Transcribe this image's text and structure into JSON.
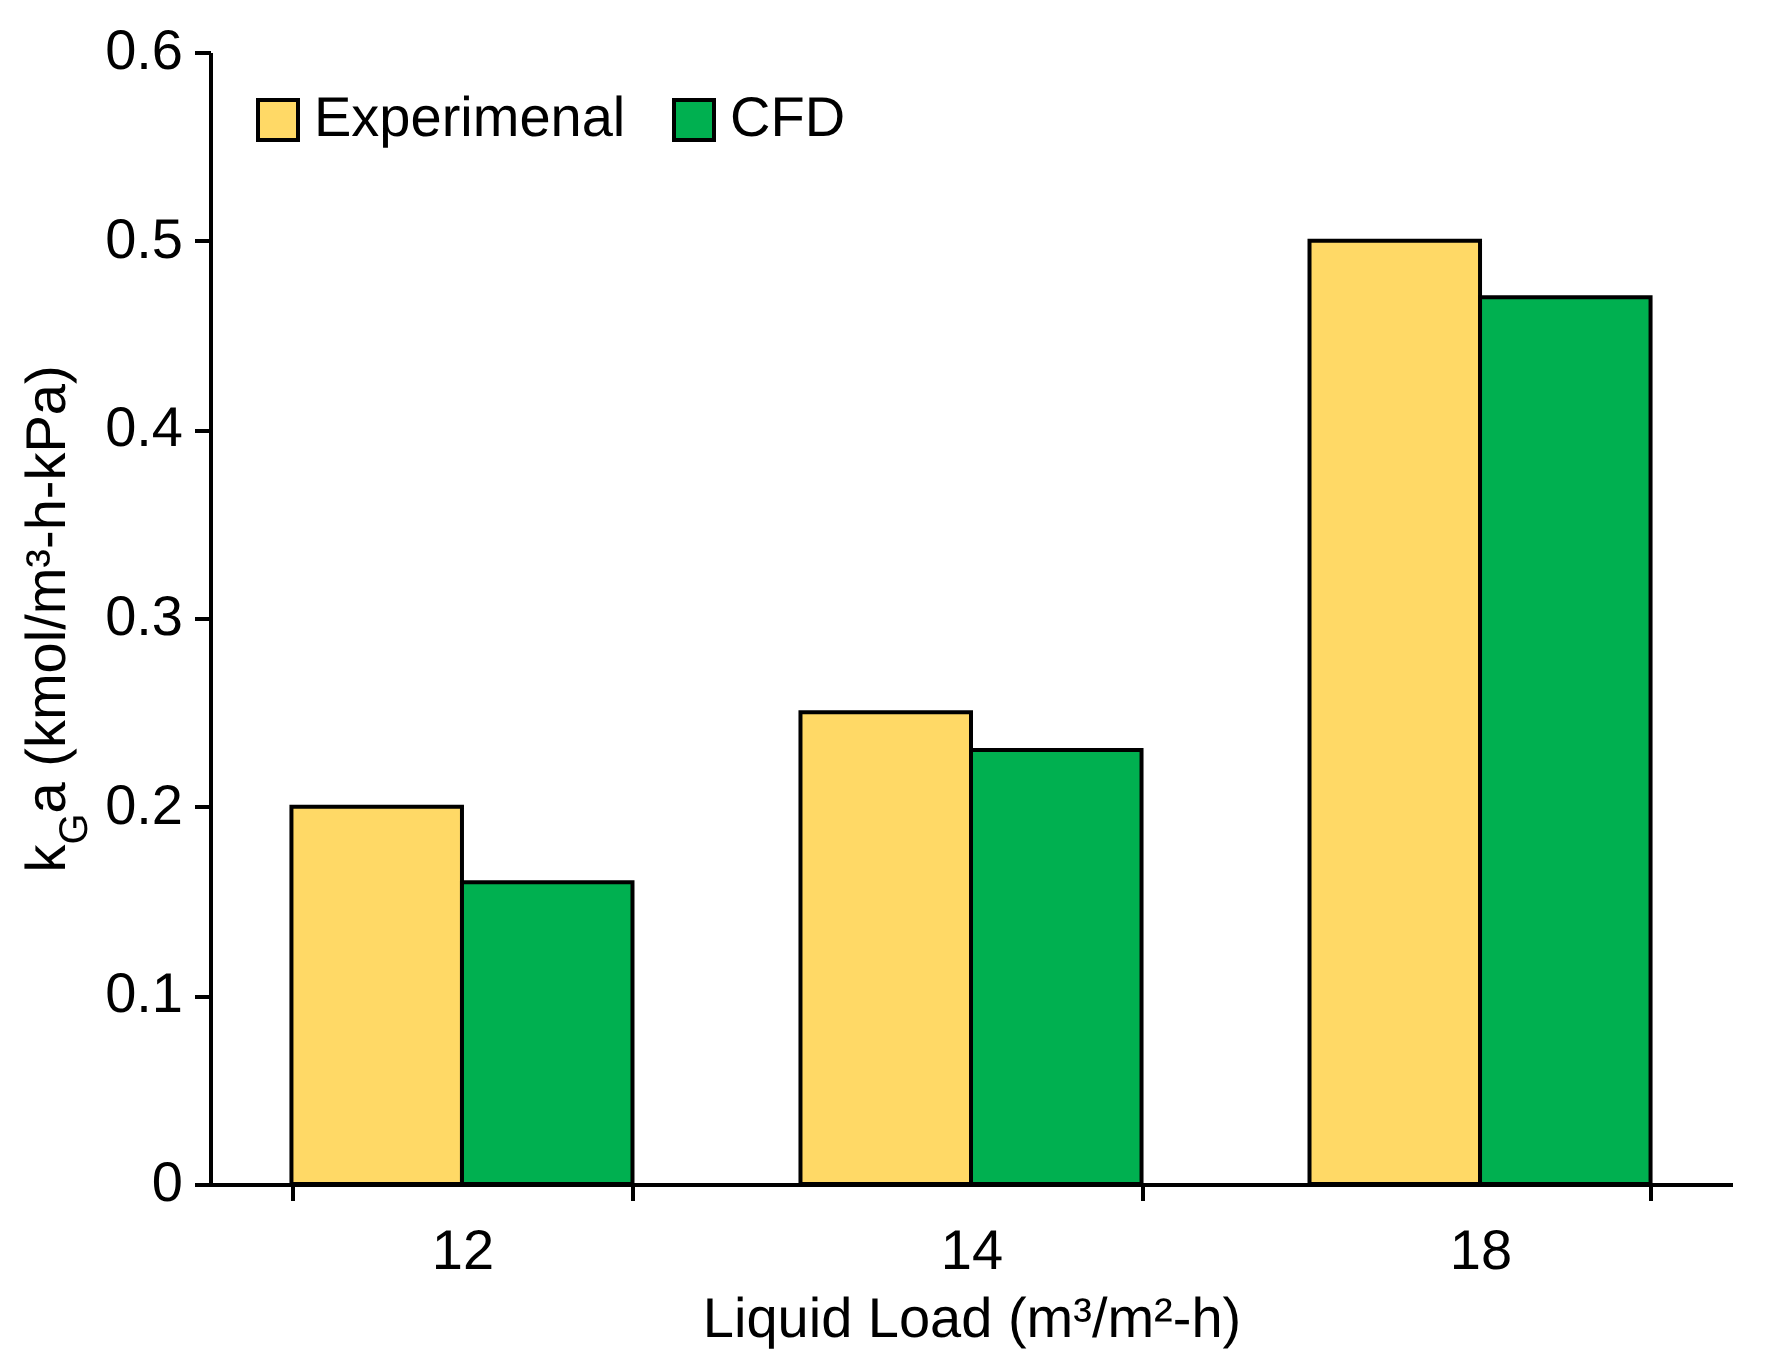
{
  "chart_data": {
    "type": "bar",
    "categories": [
      "12",
      "14",
      "18"
    ],
    "xlabel": "Liquid Load (m³/m²-h)",
    "ylabel": "k$_{G}$a (kmol/m³-h-kPa)",
    "series": [
      {
        "name": "Experimenal",
        "color": "#ffd966",
        "values": [
          0.2,
          0.25,
          0.5
        ]
      },
      {
        "name": "CFD",
        "color": "#00b050",
        "values": [
          0.16,
          0.23,
          0.47
        ]
      }
    ],
    "ylim": [
      0,
      0.6
    ],
    "yticks": [
      0,
      0.1,
      0.2,
      0.3,
      0.4,
      0.5,
      0.6
    ],
    "grid": false,
    "legend": "top left"
  }
}
